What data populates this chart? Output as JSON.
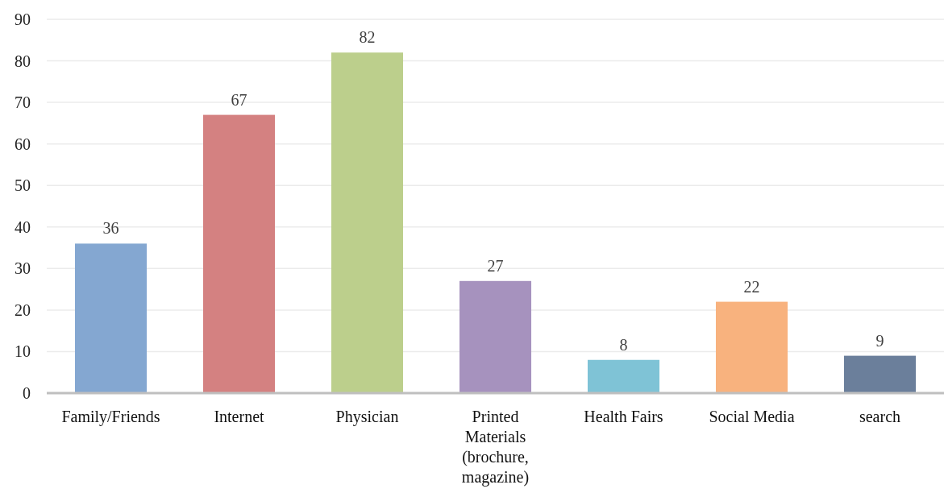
{
  "chart_data": {
    "type": "bar",
    "categories": [
      "Family/Friends",
      "Internet",
      "Physician",
      "Printed Materials (brochure, magazine)",
      "Health Fairs",
      "Social Media",
      "search"
    ],
    "values": [
      36,
      67,
      82,
      27,
      8,
      22,
      9
    ],
    "colors": [
      "#84a7d1",
      "#d48181",
      "#bccf8c",
      "#a692be",
      "#7fc3d6",
      "#f8b27e",
      "#6b7f9b"
    ],
    "ylim": [
      0,
      90
    ],
    "yticks": [
      0,
      10,
      20,
      30,
      40,
      50,
      60,
      70,
      80,
      90
    ],
    "grid": "y",
    "data_labels": true
  }
}
